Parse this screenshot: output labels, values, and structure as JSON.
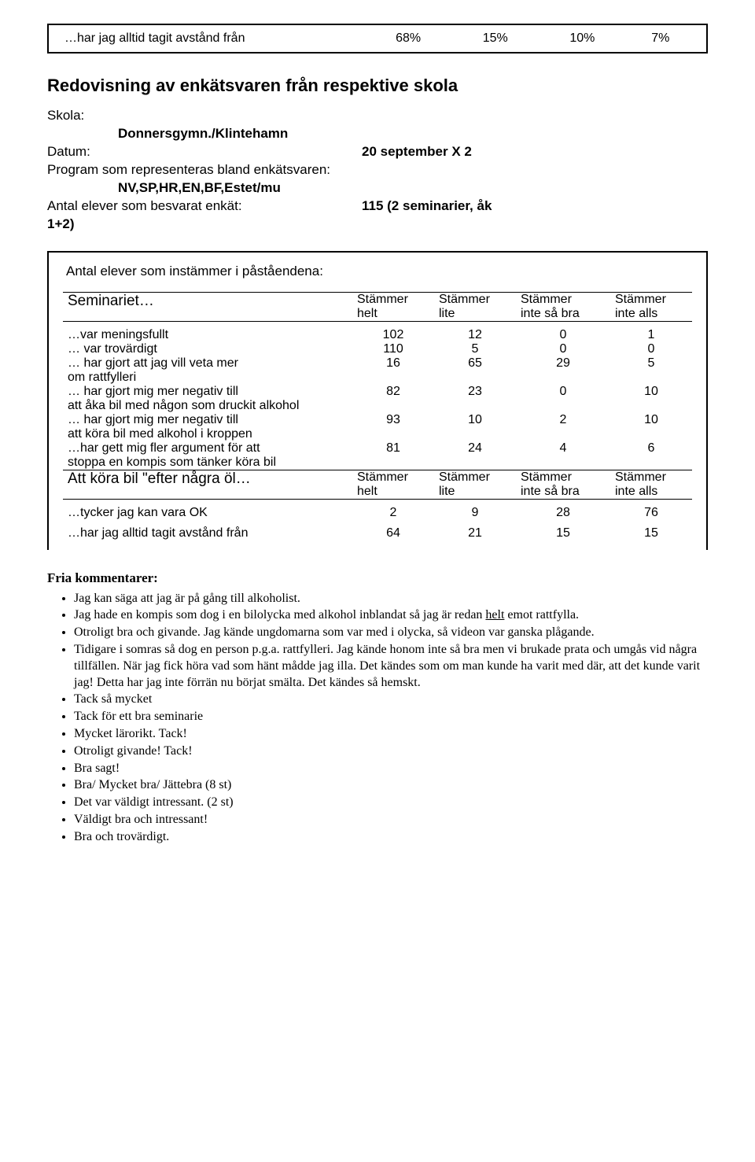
{
  "top_box": {
    "statement": "…har jag alltid tagit avstånd från",
    "cols": [
      "68%",
      "15%",
      "10%",
      "7%"
    ]
  },
  "title": "Redovisning av enkätsvaren från respektive skola",
  "meta": {
    "skola_label": "Skola:",
    "skola_value": "Donnersgymn./Klintehamn",
    "datum_label": "Datum:",
    "datum_value": "20 september  X 2",
    "program_label": "Program som representeras bland enkätsvaren:",
    "program_value": "NV,SP,HR,EN,BF,Estet/mu",
    "antal_label": "Antal elever som besvarat enkät:",
    "antal_sub": "1+2)",
    "antal_value": "115 (2 seminarier, åk"
  },
  "box": {
    "inner_title": "Antal elever som instämmer i påståendena:",
    "seminar_label": "Seminariet…",
    "col_headers_top": [
      "Stämmer",
      "Stämmer",
      "Stämmer",
      "Stämmer"
    ],
    "col_headers_bot": [
      "helt",
      "lite",
      "inte så bra",
      "inte alls"
    ],
    "rows1": [
      {
        "label": "…var meningsfullt",
        "v": [
          "102",
          "12",
          "0",
          "1"
        ]
      },
      {
        "label": "… var trovärdigt",
        "v": [
          "110",
          "5",
          "0",
          "0"
        ]
      },
      {
        "label": "… har gjort att jag vill veta mer",
        "v": [
          "16",
          "65",
          "29",
          "5"
        ]
      },
      {
        "label": "om rattfylleri",
        "v": [
          "",
          "",
          "",
          ""
        ]
      },
      {
        "label": "… har gjort mig mer negativ till",
        "v": [
          "82",
          "23",
          "0",
          "10"
        ]
      },
      {
        "label": "att åka bil med någon som druckit alkohol",
        "v": [
          "",
          "",
          "",
          ""
        ]
      },
      {
        "label": "… har gjort mig mer negativ till",
        "v": [
          "93",
          "10",
          "2",
          "10"
        ]
      },
      {
        "label": "att köra bil med alkohol i kroppen",
        "v": [
          "",
          "",
          "",
          ""
        ]
      },
      {
        "label": "…har gett mig fler argument för att",
        "v": [
          "81",
          "24",
          "4",
          "6"
        ]
      },
      {
        "label": "stoppa en kompis som tänker köra bil",
        "v": [
          "",
          "",
          "",
          ""
        ]
      }
    ],
    "mid_label": "Att köra bil \"efter några öl…",
    "rows2": [
      {
        "label": "…tycker jag kan vara OK",
        "v": [
          "2",
          "9",
          "28",
          "76"
        ]
      },
      {
        "label": "…har jag alltid tagit avstånd från",
        "v": [
          "64",
          "21",
          "15",
          "15"
        ]
      }
    ]
  },
  "comments": {
    "heading": "Fria kommentarer:",
    "items": [
      {
        "text": "Jag kan säga att jag är på gång till alkoholist."
      },
      {
        "text_pre": "Jag hade en kompis som dog i en bilolycka med alkohol inblandat så jag är redan ",
        "u": "helt",
        "text_post": " emot rattfylla."
      },
      {
        "text": "Otroligt bra och givande. Jag kände ungdomarna som var med i olycka, så videon var ganska plågande."
      },
      {
        "text": "Tidigare i somras så dog en person p.g.a. rattfylleri. Jag kände honom inte så bra men vi brukade prata och umgås vid några tillfällen. När jag fick höra vad som hänt mådde jag illa. Det kändes som om man kunde ha varit med där, att det kunde varit jag! Detta har jag inte förrän nu börjat smälta. Det kändes så hemskt."
      },
      {
        "text": "Tack så mycket"
      },
      {
        "text": "Tack för ett bra seminarie"
      },
      {
        "text": "Mycket lärorikt. Tack!"
      },
      {
        "text": "Otroligt givande! Tack!"
      },
      {
        "text": "Bra sagt!"
      },
      {
        "text": "Bra/ Mycket bra/ Jättebra  (8 st)"
      },
      {
        "text": "Det var väldigt intressant. (2 st)"
      },
      {
        "text": "Väldigt bra och intressant!"
      },
      {
        "text": "Bra och trovärdigt."
      }
    ]
  }
}
